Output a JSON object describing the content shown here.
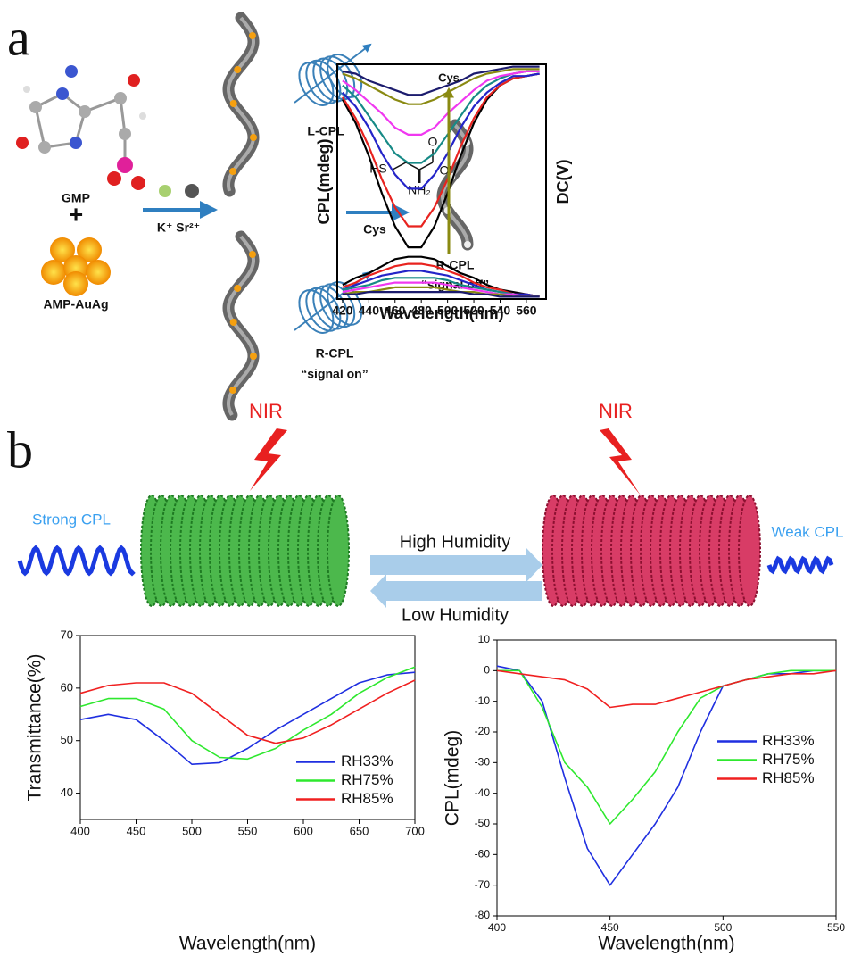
{
  "panel_labels": [
    "a",
    "b"
  ],
  "schematic_a": {
    "gmp": "GMP",
    "plus": "+",
    "cluster": "AMP-AuAg",
    "ions": "K⁺ Sr²⁺",
    "left_cpl": "L-CPL",
    "right_cpl_on": "R-CPL",
    "signal_on": "“signal on”",
    "reagent": "Cys",
    "hs": "HS",
    "oh": "OH",
    "o": "O",
    "nh2": "NH₂",
    "right_cpl_off": "R-CPL",
    "signal_off": "“signal off”"
  },
  "schematic_b": {
    "nir_left": "NIR",
    "nir_right": "NIR",
    "strong": "Strong CPL",
    "weak": "Weak CPL",
    "high": "High Humidity",
    "low": "Low Humidity"
  },
  "chart_data": [
    {
      "type": "line",
      "xlabel": "Wavelength(nm)",
      "ylabel": "CPL(mdeg)",
      "y2label": "DC(V)",
      "annotation": "Cys",
      "x": [
        420,
        430,
        440,
        450,
        460,
        470,
        480,
        490,
        500,
        510,
        520,
        530,
        540,
        550,
        560,
        570
      ],
      "xlim": [
        416,
        575
      ],
      "xticks": [
        420,
        440,
        460,
        480,
        500,
        520,
        540,
        560
      ],
      "ylim": [
        0,
        100
      ],
      "y2lim": [
        0,
        100
      ],
      "series": [
        {
          "color": "#000000",
          "values": [
            85,
            75,
            61,
            45,
            31,
            22,
            22,
            31,
            45,
            61,
            75,
            85,
            91,
            94,
            95,
            96
          ]
        },
        {
          "color": "#e8231f",
          "values": [
            86,
            77,
            65,
            51,
            39,
            31,
            31,
            39,
            51,
            65,
            77,
            86,
            91,
            94,
            95,
            96
          ]
        },
        {
          "color": "#2424c8",
          "values": [
            88,
            82,
            73,
            62,
            53,
            47,
            47,
            53,
            62,
            73,
            82,
            88,
            92,
            95,
            95,
            96
          ]
        },
        {
          "color": "#178a86",
          "values": [
            91,
            86,
            78,
            70,
            62,
            58,
            58,
            62,
            70,
            78,
            86,
            91,
            94,
            96,
            97,
            97
          ]
        },
        {
          "color": "#f038f0",
          "values": [
            93,
            89,
            84,
            79,
            73,
            70,
            70,
            73,
            79,
            84,
            89,
            93,
            95,
            96,
            97,
            97
          ]
        },
        {
          "color": "#8a8a12",
          "values": [
            96,
            94,
            91,
            88,
            85,
            83,
            83,
            85,
            88,
            91,
            94,
            96,
            97,
            98,
            98,
            98
          ]
        },
        {
          "color": "#1c1c6e",
          "values": [
            97,
            96,
            93,
            91,
            89,
            87,
            87,
            89,
            91,
            93,
            96,
            97,
            98,
            99,
            99,
            99
          ]
        },
        {
          "color": "#000000",
          "axis": "y2",
          "values": [
            6,
            9,
            11,
            14,
            17,
            18,
            18,
            17,
            14,
            11,
            9,
            6,
            4,
            3,
            2,
            1
          ]
        },
        {
          "color": "#e8231f",
          "axis": "y2",
          "values": [
            5,
            7,
            10,
            12,
            14,
            15,
            15,
            14,
            12,
            10,
            7,
            5,
            4,
            2,
            2,
            1
          ]
        },
        {
          "color": "#2424c8",
          "axis": "y2",
          "values": [
            4,
            6,
            8,
            10,
            11,
            12,
            12,
            11,
            10,
            8,
            6,
            4,
            3,
            2,
            2,
            1
          ]
        },
        {
          "color": "#178a86",
          "axis": "y2",
          "values": [
            4,
            5,
            6,
            8,
            9,
            9,
            9,
            9,
            8,
            6,
            5,
            4,
            3,
            2,
            1,
            1
          ]
        },
        {
          "color": "#f038f0",
          "axis": "y2",
          "values": [
            3,
            4,
            5,
            6,
            7,
            7,
            7,
            7,
            6,
            5,
            4,
            3,
            2,
            2,
            1,
            1
          ]
        },
        {
          "color": "#8a8a12",
          "axis": "y2",
          "values": [
            2,
            3,
            3,
            4,
            5,
            5,
            5,
            5,
            4,
            3,
            3,
            2,
            2,
            1,
            1,
            1
          ]
        },
        {
          "color": "#1c1c6e",
          "axis": "y2",
          "values": [
            2,
            2,
            3,
            3,
            3,
            3,
            3,
            3,
            3,
            3,
            2,
            2,
            1,
            1,
            1,
            1
          ]
        }
      ]
    },
    {
      "type": "line",
      "xlabel": "Wavelength(nm)",
      "ylabel": "Transmittance(%)",
      "x": [
        400,
        425,
        450,
        475,
        500,
        525,
        550,
        575,
        600,
        625,
        650,
        675,
        700
      ],
      "xlim": [
        400,
        700
      ],
      "xticks": [
        400,
        450,
        500,
        550,
        600,
        650,
        700
      ],
      "ylim": [
        35,
        70
      ],
      "yticks": [
        40,
        50,
        60,
        70
      ],
      "legend": "lower right",
      "series": [
        {
          "name": "RH33%",
          "color": "#1f2fe0",
          "values": [
            54,
            55,
            54,
            50,
            45.5,
            45.8,
            48.5,
            52,
            55,
            58,
            61,
            62.5,
            63
          ]
        },
        {
          "name": "RH75%",
          "color": "#2ee82e",
          "values": [
            56.5,
            58,
            58,
            56,
            50,
            46.8,
            46.5,
            48.5,
            52,
            55,
            59,
            62,
            64
          ]
        },
        {
          "name": "RH85%",
          "color": "#f02020",
          "values": [
            59,
            60.5,
            61,
            61,
            59,
            55,
            51,
            49.5,
            50.5,
            53,
            56,
            59,
            61.5
          ]
        }
      ]
    },
    {
      "type": "line",
      "xlabel": "Wavelength(nm)",
      "ylabel": "CPL(mdeg)",
      "x": [
        400,
        410,
        420,
        430,
        440,
        450,
        460,
        470,
        480,
        490,
        500,
        510,
        520,
        530,
        540,
        550
      ],
      "xlim": [
        400,
        550
      ],
      "xticks": [
        400,
        450,
        500,
        550
      ],
      "ylim": [
        -80,
        10
      ],
      "yticks": [
        -80,
        -70,
        -60,
        -50,
        -40,
        -30,
        -20,
        -10,
        0,
        10
      ],
      "legend": "center right",
      "series": [
        {
          "name": "RH33%",
          "color": "#1f2fe0",
          "values": [
            1.5,
            0,
            -10,
            -35,
            -58,
            -70,
            -60,
            -50,
            -38,
            -20,
            -5,
            -3,
            -1,
            -1,
            0,
            0
          ]
        },
        {
          "name": "RH75%",
          "color": "#2ee82e",
          "values": [
            0,
            0,
            -12,
            -30,
            -38,
            -50,
            -42,
            -33,
            -20,
            -9,
            -5,
            -3,
            -1,
            0,
            0,
            0
          ]
        },
        {
          "name": "RH85%",
          "color": "#f02020",
          "values": [
            0,
            -1,
            -2,
            -3,
            -6,
            -12,
            -11,
            -11,
            -9,
            -7,
            -5,
            -3,
            -2,
            -1,
            -1,
            0
          ]
        }
      ]
    }
  ]
}
